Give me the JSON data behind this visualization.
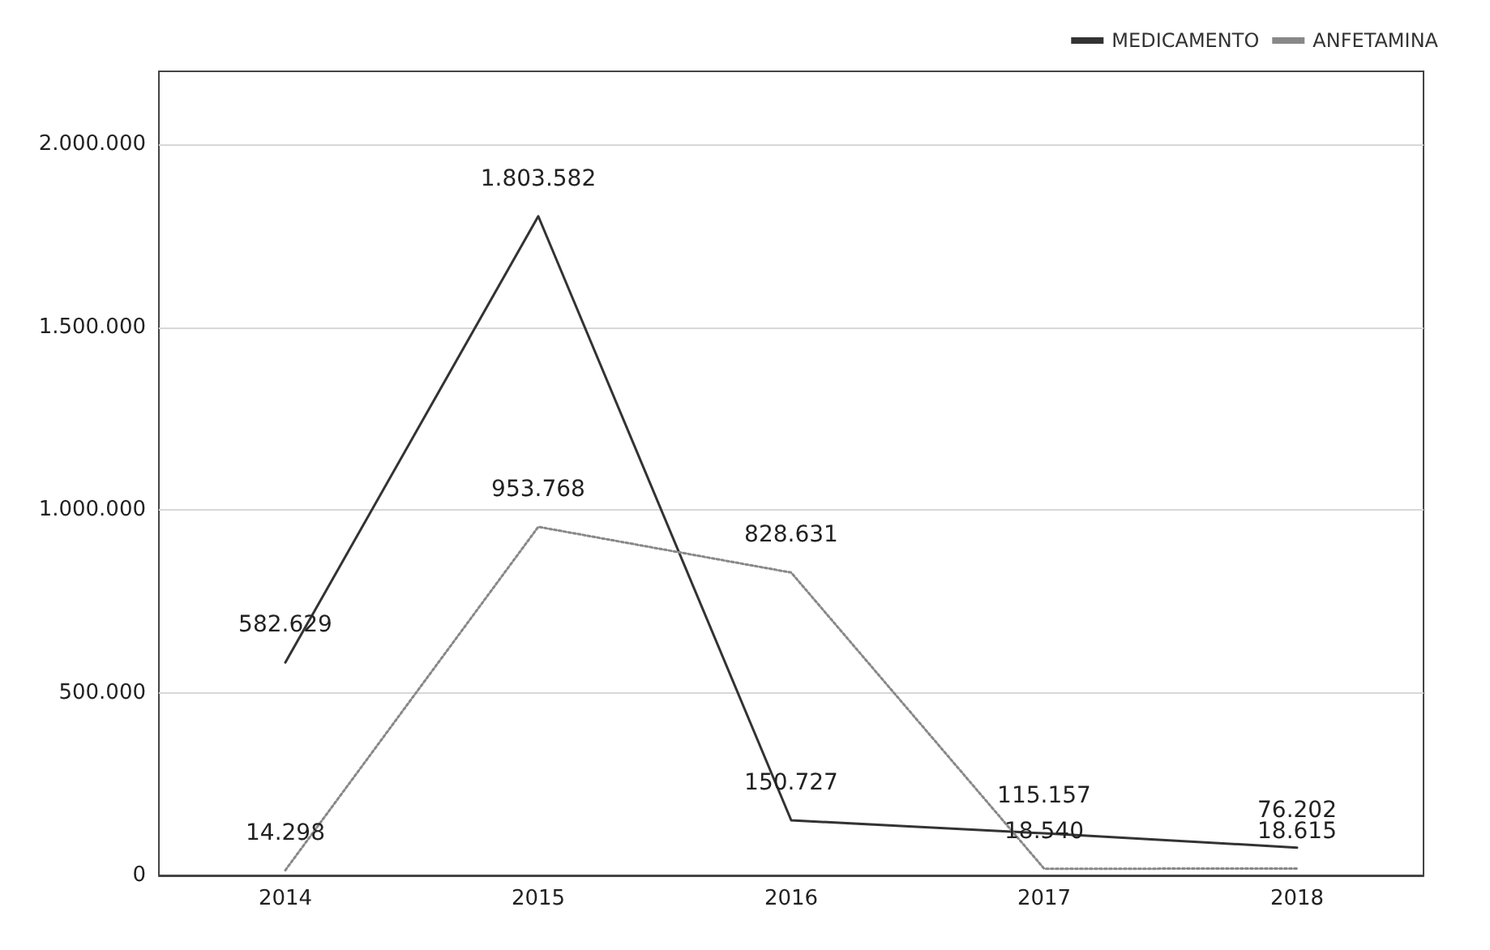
{
  "chart_data": {
    "type": "line",
    "categories": [
      "2014",
      "2015",
      "2016",
      "2017",
      "2018"
    ],
    "series": [
      {
        "name": "MEDICAMENTO",
        "color": "#333333",
        "line_style": "solid",
        "values": [
          582629,
          1803582,
          150727,
          115157,
          76202
        ],
        "value_labels": [
          "582.629",
          "1.803.582",
          "150.727",
          "115.157",
          "76.202"
        ]
      },
      {
        "name": "ANFETAMINA",
        "color": "#888888",
        "line_style": "dotted",
        "values": [
          14298,
          953768,
          828631,
          18540,
          18615
        ],
        "value_labels": [
          "14.298",
          "953.768",
          "828.631",
          "18.540",
          "18.615"
        ]
      }
    ],
    "ylim": [
      0,
      2200000
    ],
    "yticks": [
      0,
      {
        "value": 500000,
        "label": "500.000"
      },
      {
        "value": 1000000,
        "label": "1.000.000"
      },
      {
        "value": 1500000,
        "label": "1.500.000"
      },
      {
        "value": 2000000,
        "label": "2.000.000"
      }
    ],
    "grid": "y",
    "legend": "top right",
    "marker": "none"
  }
}
